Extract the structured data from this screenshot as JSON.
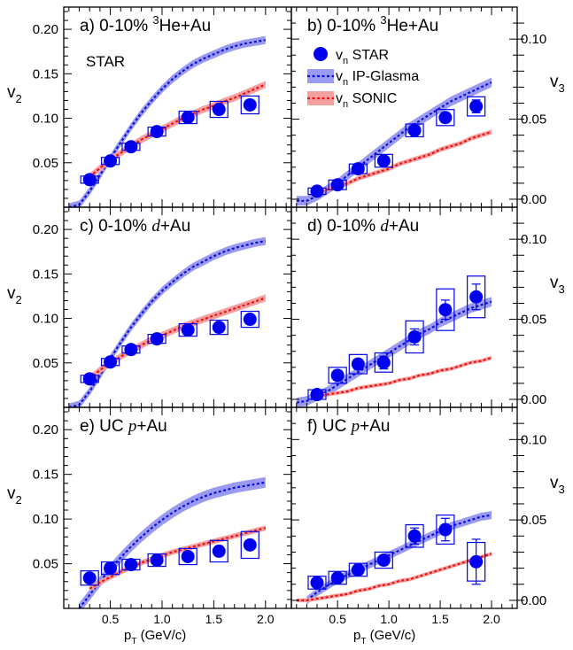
{
  "colors": {
    "star": "#0000ee",
    "glasma_line": "#1111dd",
    "glasma_band": "#9a9af0",
    "sonic_line": "#ee1111",
    "sonic_band": "#f4a0a0"
  },
  "x_axis": {
    "label_main": "p",
    "label_sub": "T",
    "label_unit": " (GeV/c)",
    "range": [
      0.05,
      2.25
    ],
    "ticks": [
      0.5,
      1.0,
      1.5,
      2.0
    ],
    "tick_labels": [
      "0.5",
      "1.0",
      "1.5",
      "2.0"
    ]
  },
  "left_axis": {
    "label_main": "v",
    "label_sub": "2",
    "range": [
      0,
      0.225
    ],
    "ticks": [
      0.05,
      0.1,
      0.15,
      0.2
    ],
    "tick_labels": [
      "0.05",
      "0.10",
      "0.15",
      "0.20"
    ]
  },
  "right_axis": {
    "label_main": "v",
    "label_sub": "3",
    "range": [
      -0.005,
      0.12
    ],
    "ticks": [
      0.0,
      0.05,
      0.1
    ],
    "tick_labels": [
      "0.00",
      "0.05",
      "0.10"
    ]
  },
  "legend": {
    "star": {
      "main": "v",
      "sub": "n",
      "rest": " STAR"
    },
    "glasma": {
      "main": "v",
      "sub": "n",
      "rest": " IP-Glasma"
    },
    "sonic": {
      "main": "v",
      "sub": "n",
      "rest": " SONIC"
    }
  },
  "star_label": "STAR",
  "chart_data": [
    {
      "type": "scatter",
      "panel": "a",
      "label": {
        "prefix": "a) 0-10% ",
        "sup": "3",
        "system": "He+Au",
        "italic": ""
      },
      "ylabel": "v2",
      "series": [
        {
          "name": "vn STAR",
          "x": [
            0.3,
            0.5,
            0.7,
            0.95,
            1.25,
            1.55,
            1.85
          ],
          "y": [
            0.031,
            0.052,
            0.068,
            0.085,
            0.101,
            0.11,
            0.115
          ],
          "stat": [
            0.002,
            0.002,
            0.002,
            0.002,
            0.003,
            0.004,
            0.005
          ],
          "sys": [
            0.004,
            0.004,
            0.004,
            0.005,
            0.007,
            0.009,
            0.01
          ]
        },
        {
          "name": "vn IP-Glasma",
          "x": [
            0.1,
            0.2,
            0.3,
            0.4,
            0.5,
            0.6,
            0.7,
            0.8,
            0.9,
            1.0,
            1.1,
            1.2,
            1.3,
            1.4,
            1.5,
            1.6,
            1.7,
            1.8,
            1.9,
            2.0
          ],
          "y": [
            0.0,
            0.003,
            0.018,
            0.036,
            0.055,
            0.073,
            0.09,
            0.106,
            0.12,
            0.133,
            0.144,
            0.153,
            0.161,
            0.167,
            0.172,
            0.177,
            0.181,
            0.184,
            0.186,
            0.188
          ],
          "band": 0.0045
        },
        {
          "name": "vn SONIC",
          "x": [
            0.3,
            0.4,
            0.5,
            0.6,
            0.7,
            0.8,
            0.9,
            1.0,
            1.1,
            1.2,
            1.3,
            1.4,
            1.5,
            1.6,
            1.7,
            1.8,
            1.9,
            2.0
          ],
          "y": [
            0.034,
            0.044,
            0.053,
            0.061,
            0.069,
            0.076,
            0.082,
            0.088,
            0.094,
            0.1,
            0.105,
            0.11,
            0.114,
            0.119,
            0.123,
            0.128,
            0.133,
            0.138
          ],
          "band": 0.004
        }
      ]
    },
    {
      "type": "scatter",
      "panel": "b",
      "label": {
        "prefix": "b) 0-10% ",
        "sup": "3",
        "system": "He+Au",
        "italic": ""
      },
      "ylabel": "v3",
      "series": [
        {
          "name": "vn STAR",
          "x": [
            0.3,
            0.5,
            0.7,
            0.95,
            1.25,
            1.55,
            1.85
          ],
          "y": [
            0.005,
            0.009,
            0.019,
            0.024,
            0.043,
            0.051,
            0.058
          ],
          "stat": [
            0.001,
            0.001,
            0.001,
            0.002,
            0.002,
            0.003,
            0.004
          ],
          "sys": [
            0.002,
            0.003,
            0.003,
            0.004,
            0.004,
            0.005,
            0.006
          ]
        },
        {
          "name": "vn IP-Glasma",
          "x": [
            0.1,
            0.2,
            0.3,
            0.4,
            0.5,
            0.6,
            0.7,
            0.8,
            0.9,
            1.0,
            1.1,
            1.2,
            1.3,
            1.4,
            1.5,
            1.6,
            1.7,
            1.8,
            1.9,
            2.0
          ],
          "y": [
            -0.001,
            -0.001,
            0.002,
            0.006,
            0.01,
            0.015,
            0.02,
            0.025,
            0.03,
            0.035,
            0.04,
            0.045,
            0.049,
            0.053,
            0.057,
            0.061,
            0.064,
            0.067,
            0.07,
            0.073
          ],
          "band": 0.003
        },
        {
          "name": "vn SONIC",
          "x": [
            0.3,
            0.4,
            0.5,
            0.6,
            0.7,
            0.8,
            0.9,
            1.0,
            1.1,
            1.2,
            1.3,
            1.4,
            1.5,
            1.6,
            1.7,
            1.8,
            1.9,
            2.0
          ],
          "y": [
            0.004,
            0.006,
            0.008,
            0.01,
            0.013,
            0.015,
            0.017,
            0.019,
            0.022,
            0.024,
            0.026,
            0.028,
            0.031,
            0.033,
            0.035,
            0.038,
            0.04,
            0.042
          ],
          "band": 0.0015
        }
      ]
    },
    {
      "type": "scatter",
      "panel": "c",
      "label": {
        "prefix": "c) 0-10% ",
        "sup": "",
        "system": "+Au",
        "italic": "d"
      },
      "ylabel": "v2",
      "series": [
        {
          "name": "vn STAR",
          "x": [
            0.3,
            0.5,
            0.7,
            0.95,
            1.25,
            1.55,
            1.85
          ],
          "y": [
            0.032,
            0.051,
            0.065,
            0.077,
            0.087,
            0.09,
            0.099
          ],
          "stat": [
            0.002,
            0.002,
            0.002,
            0.002,
            0.003,
            0.004,
            0.005
          ],
          "sys": [
            0.004,
            0.004,
            0.004,
            0.005,
            0.007,
            0.008,
            0.009
          ]
        },
        {
          "name": "vn IP-Glasma",
          "x": [
            0.1,
            0.2,
            0.3,
            0.4,
            0.5,
            0.6,
            0.7,
            0.8,
            0.9,
            1.0,
            1.1,
            1.2,
            1.3,
            1.4,
            1.5,
            1.6,
            1.7,
            1.8,
            1.9,
            2.0
          ],
          "y": [
            0.0,
            0.003,
            0.018,
            0.036,
            0.055,
            0.073,
            0.09,
            0.105,
            0.119,
            0.131,
            0.141,
            0.15,
            0.158,
            0.164,
            0.17,
            0.175,
            0.179,
            0.182,
            0.185,
            0.187
          ],
          "band": 0.0045
        },
        {
          "name": "vn SONIC",
          "x": [
            0.3,
            0.4,
            0.5,
            0.6,
            0.7,
            0.8,
            0.9,
            1.0,
            1.1,
            1.2,
            1.3,
            1.4,
            1.5,
            1.6,
            1.7,
            1.8,
            1.9,
            2.0
          ],
          "y": [
            0.032,
            0.042,
            0.05,
            0.057,
            0.064,
            0.07,
            0.076,
            0.081,
            0.086,
            0.091,
            0.095,
            0.099,
            0.103,
            0.107,
            0.111,
            0.115,
            0.119,
            0.123
          ],
          "band": 0.004
        }
      ]
    },
    {
      "type": "scatter",
      "panel": "d",
      "label": {
        "prefix": "d) 0-10% ",
        "sup": "",
        "system": "+Au",
        "italic": "d"
      },
      "ylabel": "v3",
      "series": [
        {
          "name": "vn STAR",
          "x": [
            0.3,
            0.5,
            0.7,
            0.95,
            1.25,
            1.55,
            1.85
          ],
          "y": [
            0.003,
            0.015,
            0.022,
            0.023,
            0.039,
            0.056,
            0.064
          ],
          "stat": [
            0.002,
            0.003,
            0.003,
            0.004,
            0.005,
            0.006,
            0.008
          ],
          "sys": [
            0.003,
            0.005,
            0.006,
            0.006,
            0.01,
            0.013,
            0.013
          ]
        },
        {
          "name": "vn IP-Glasma",
          "x": [
            0.1,
            0.2,
            0.3,
            0.4,
            0.5,
            0.6,
            0.7,
            0.8,
            0.9,
            1.0,
            1.1,
            1.2,
            1.3,
            1.4,
            1.5,
            1.6,
            1.7,
            1.8,
            1.9,
            2.0
          ],
          "y": [
            -0.002,
            -0.001,
            0.002,
            0.005,
            0.009,
            0.013,
            0.017,
            0.021,
            0.025,
            0.029,
            0.033,
            0.037,
            0.041,
            0.044,
            0.048,
            0.051,
            0.054,
            0.057,
            0.059,
            0.061
          ],
          "band": 0.003
        },
        {
          "name": "vn SONIC",
          "x": [
            0.3,
            0.4,
            0.5,
            0.6,
            0.7,
            0.8,
            0.9,
            1.0,
            1.1,
            1.2,
            1.3,
            1.4,
            1.5,
            1.6,
            1.7,
            1.8,
            1.9,
            2.0
          ],
          "y": [
            0.002,
            0.003,
            0.004,
            0.005,
            0.007,
            0.008,
            0.009,
            0.01,
            0.012,
            0.013,
            0.015,
            0.016,
            0.018,
            0.019,
            0.021,
            0.023,
            0.024,
            0.026
          ],
          "band": 0.0012
        }
      ]
    },
    {
      "type": "scatter",
      "panel": "e",
      "label": {
        "prefix": "e) UC  ",
        "sup": "",
        "system": "+Au",
        "italic": "p"
      },
      "ylabel": "v2",
      "series": [
        {
          "name": "vn STAR",
          "x": [
            0.3,
            0.5,
            0.7,
            0.95,
            1.25,
            1.55,
            1.85
          ],
          "y": [
            0.034,
            0.045,
            0.049,
            0.054,
            0.058,
            0.064,
            0.071
          ],
          "stat": [
            0.002,
            0.002,
            0.002,
            0.002,
            0.003,
            0.004,
            0.005
          ],
          "sys": [
            0.008,
            0.007,
            0.006,
            0.007,
            0.009,
            0.012,
            0.015
          ]
        },
        {
          "name": "vn IP-Glasma",
          "x": [
            0.2,
            0.3,
            0.4,
            0.5,
            0.6,
            0.7,
            0.8,
            0.9,
            1.0,
            1.1,
            1.2,
            1.3,
            1.4,
            1.5,
            1.6,
            1.7,
            1.8,
            1.9,
            2.0
          ],
          "y": [
            0.0,
            0.015,
            0.03,
            0.044,
            0.057,
            0.069,
            0.08,
            0.09,
            0.099,
            0.107,
            0.114,
            0.12,
            0.125,
            0.129,
            0.132,
            0.135,
            0.137,
            0.139,
            0.141
          ],
          "band": 0.006
        },
        {
          "name": "vn SONIC",
          "x": [
            0.3,
            0.4,
            0.5,
            0.6,
            0.7,
            0.8,
            0.9,
            1.0,
            1.1,
            1.2,
            1.3,
            1.4,
            1.5,
            1.6,
            1.7,
            1.8,
            1.9,
            2.0
          ],
          "y": [
            0.022,
            0.029,
            0.035,
            0.041,
            0.046,
            0.051,
            0.055,
            0.059,
            0.063,
            0.066,
            0.069,
            0.072,
            0.075,
            0.078,
            0.081,
            0.084,
            0.087,
            0.09
          ],
          "band": 0.003
        }
      ]
    },
    {
      "type": "scatter",
      "panel": "f",
      "label": {
        "prefix": "f) UC  ",
        "sup": "",
        "system": "+Au",
        "italic": "p"
      },
      "ylabel": "v3",
      "series": [
        {
          "name": "vn STAR",
          "x": [
            0.3,
            0.5,
            0.7,
            0.95,
            1.25,
            1.55,
            1.85
          ],
          "y": [
            0.011,
            0.014,
            0.019,
            0.025,
            0.04,
            0.044,
            0.024
          ],
          "stat": [
            0.002,
            0.002,
            0.002,
            0.003,
            0.005,
            0.007,
            0.014
          ],
          "sys": [
            0.004,
            0.004,
            0.004,
            0.005,
            0.007,
            0.009,
            0.012
          ]
        },
        {
          "name": "vn IP-Glasma",
          "x": [
            0.2,
            0.3,
            0.4,
            0.5,
            0.6,
            0.7,
            0.8,
            0.9,
            1.0,
            1.1,
            1.2,
            1.3,
            1.4,
            1.5,
            1.6,
            1.7,
            1.8,
            1.9,
            2.0
          ],
          "y": [
            0.0,
            0.005,
            0.009,
            0.013,
            0.016,
            0.019,
            0.022,
            0.025,
            0.028,
            0.031,
            0.034,
            0.037,
            0.04,
            0.043,
            0.046,
            0.048,
            0.05,
            0.052,
            0.053
          ],
          "band": 0.0025
        },
        {
          "name": "vn SONIC",
          "x": [
            0.1,
            0.2,
            0.3,
            0.4,
            0.5,
            0.6,
            0.7,
            0.8,
            0.9,
            1.0,
            1.1,
            1.2,
            1.3,
            1.4,
            1.5,
            1.6,
            1.7,
            1.8,
            1.9,
            2.0
          ],
          "y": [
            0.0,
            0.0,
            0.001,
            0.002,
            0.003,
            0.004,
            0.006,
            0.007,
            0.009,
            0.01,
            0.012,
            0.013,
            0.015,
            0.017,
            0.019,
            0.021,
            0.023,
            0.025,
            0.027,
            0.029
          ],
          "band": 0.0012
        }
      ]
    }
  ]
}
